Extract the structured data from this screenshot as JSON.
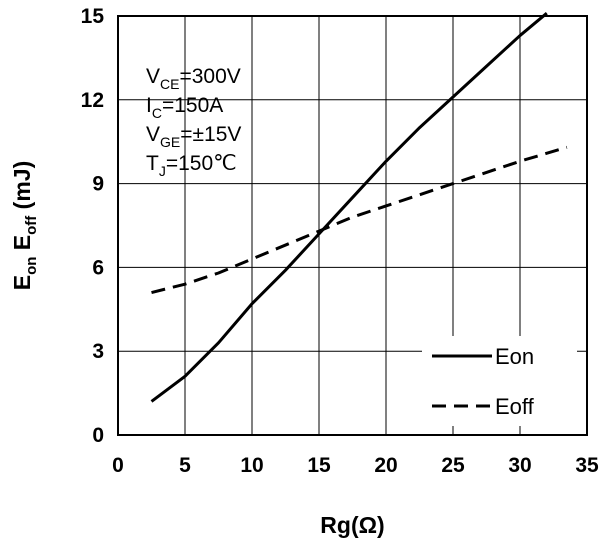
{
  "chart_data": {
    "type": "line",
    "xlabel": "Rg(Ω)",
    "ylabel": {
      "parts": [
        {
          "text": "E",
          "sub": false
        },
        {
          "text": "on",
          "sub": true
        },
        {
          "text": " E",
          "sub": false
        },
        {
          "text": "off",
          "sub": true
        },
        {
          "text": " (mJ)",
          "sub": false
        }
      ]
    },
    "xlim": [
      0,
      35
    ],
    "ylim": [
      0,
      15
    ],
    "xticks": [
      "0",
      "5",
      "10",
      "15",
      "20",
      "25",
      "30",
      "35"
    ],
    "yticks": [
      "0",
      "3",
      "6",
      "9",
      "12",
      "15"
    ],
    "grid": true,
    "legend_position": "bottom-right",
    "conditions": [
      {
        "main": "V",
        "sub": "CE",
        "rest": "=300V"
      },
      {
        "main": "I",
        "sub": "C",
        "rest": "=150A"
      },
      {
        "main": "V",
        "sub": "GE",
        "rest": "=±15V"
      },
      {
        "main": "T",
        "sub": "J",
        "rest": "=150℃"
      }
    ],
    "series": [
      {
        "name": "Eon",
        "style": "solid",
        "x": [
          2.5,
          5,
          7.5,
          10,
          12.5,
          15,
          17.5,
          20,
          22.5,
          25,
          27.5,
          30,
          32
        ],
        "y": [
          1.2,
          2.1,
          3.3,
          4.7,
          5.9,
          7.2,
          8.5,
          9.8,
          11.0,
          12.1,
          13.2,
          14.3,
          15.1
        ]
      },
      {
        "name": "Eoff",
        "style": "dashed",
        "x": [
          2.5,
          5,
          7.5,
          10,
          12.5,
          15,
          17.5,
          20,
          22.5,
          25,
          27.5,
          30,
          33.5
        ],
        "y": [
          5.1,
          5.4,
          5.8,
          6.3,
          6.8,
          7.3,
          7.8,
          8.2,
          8.6,
          9.0,
          9.4,
          9.8,
          10.3
        ]
      }
    ]
  }
}
